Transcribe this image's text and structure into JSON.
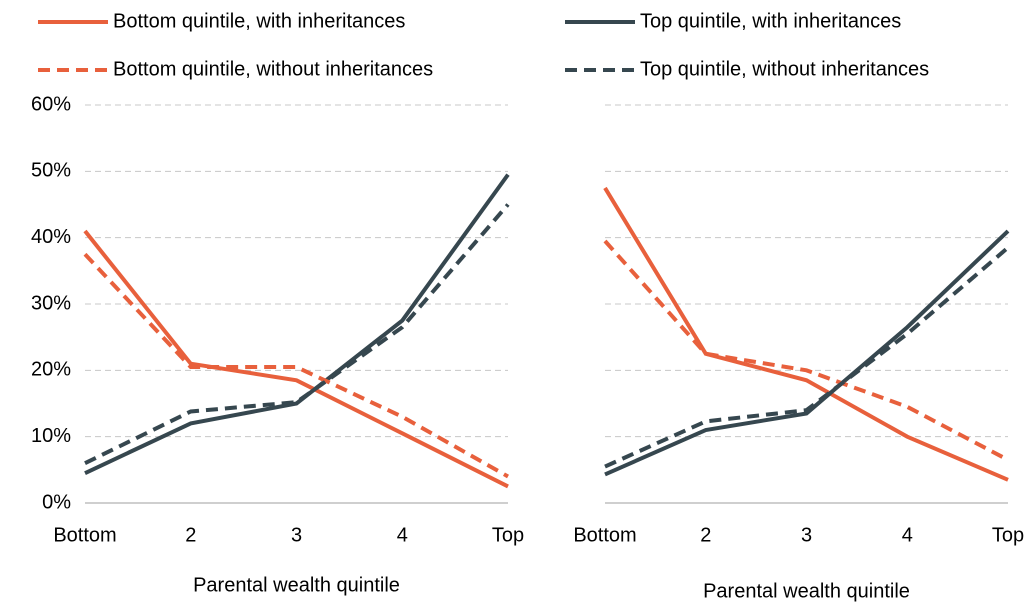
{
  "chart_data": [
    {
      "type": "line",
      "xlabel": "Parental wealth quintile",
      "categories": [
        "Bottom",
        "2",
        "3",
        "4",
        "Top"
      ],
      "ylim": [
        0,
        60
      ],
      "yticks": [
        {
          "value": 0,
          "label": "0%"
        },
        {
          "value": 10,
          "label": "10%"
        },
        {
          "value": 20,
          "label": "20%"
        },
        {
          "value": 30,
          "label": "30%"
        },
        {
          "value": 40,
          "label": "40%"
        },
        {
          "value": 50,
          "label": "50%"
        },
        {
          "value": 60,
          "label": "60%"
        }
      ],
      "grid": true,
      "series": [
        {
          "name": "Bottom quintile, with inheritances",
          "color": "#e8603c",
          "dashed": false,
          "values": [
            41,
            21,
            18.5,
            10.5,
            2.5
          ]
        },
        {
          "name": "Top quintile, with inheritances",
          "color": "#36474f",
          "dashed": false,
          "values": [
            4.5,
            12,
            15,
            27.5,
            49.5
          ]
        },
        {
          "name": "Bottom quintile, without inheritances",
          "color": "#e8603c",
          "dashed": true,
          "values": [
            37.5,
            20.5,
            20.5,
            13,
            4
          ]
        },
        {
          "name": "Top quintile, without inheritances",
          "color": "#36474f",
          "dashed": true,
          "values": [
            6,
            13.8,
            15.2,
            26.5,
            45
          ]
        }
      ]
    },
    {
      "type": "line",
      "xlabel": "Parental wealth quintile",
      "categories": [
        "Bottom",
        "2",
        "3",
        "4",
        "Top"
      ],
      "ylim": [
        0,
        60
      ],
      "yticks": [
        0,
        10,
        20,
        30,
        40,
        50,
        60
      ],
      "grid": true,
      "series": [
        {
          "color": "#e8603c",
          "dashed": false,
          "values": [
            47.5,
            22.5,
            18.5,
            10,
            3.5
          ]
        },
        {
          "color": "#36474f",
          "dashed": false,
          "values": [
            4.3,
            11,
            13.5,
            26.5,
            41
          ]
        },
        {
          "color": "#e8603c",
          "dashed": true,
          "values": [
            39.5,
            22.5,
            20,
            14.5,
            6.5
          ]
        },
        {
          "color": "#36474f",
          "dashed": true,
          "values": [
            5.5,
            12.3,
            14,
            25.5,
            38.5
          ]
        }
      ]
    }
  ]
}
